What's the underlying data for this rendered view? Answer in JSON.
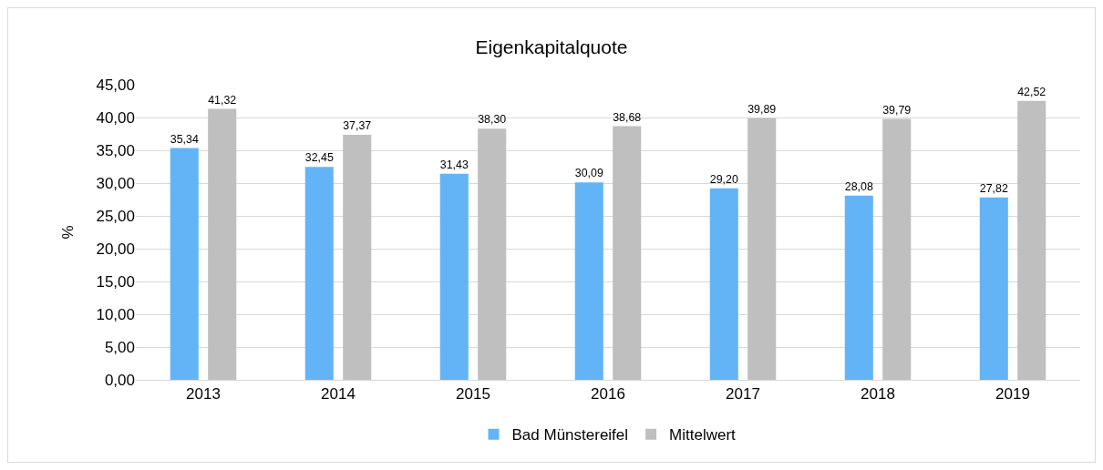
{
  "chart_data": {
    "type": "bar",
    "title": "Eigenkapitalquote",
    "ylabel": "%",
    "categories": [
      "2013",
      "2014",
      "2015",
      "2016",
      "2017",
      "2018",
      "2019"
    ],
    "series": [
      {
        "name": "Bad Münstereifel",
        "color": "#63b4f6",
        "values": [
          35.34,
          32.45,
          31.43,
          30.09,
          29.2,
          28.08,
          27.82
        ],
        "value_labels": [
          "35,34",
          "32,45",
          "31,43",
          "30,09",
          "29,20",
          "28,08",
          "27,82"
        ]
      },
      {
        "name": "Mittelwert",
        "color": "#bfbfbf",
        "values": [
          41.32,
          37.37,
          38.3,
          38.68,
          39.89,
          39.79,
          42.52
        ],
        "value_labels": [
          "41,32",
          "37,37",
          "38,30",
          "38,68",
          "39,89",
          "39,79",
          "42,52"
        ]
      }
    ],
    "ylim": [
      0,
      45
    ],
    "yticks": [
      {
        "value": 0,
        "label": "0,00"
      },
      {
        "value": 5,
        "label": "5,00"
      },
      {
        "value": 10,
        "label": "10,00"
      },
      {
        "value": 15,
        "label": "15,00"
      },
      {
        "value": 20,
        "label": "20,00"
      },
      {
        "value": 25,
        "label": "25,00"
      },
      {
        "value": 30,
        "label": "30,00"
      },
      {
        "value": 35,
        "label": "35,00"
      },
      {
        "value": 40,
        "label": "40,00"
      },
      {
        "value": 45,
        "label": "45,00"
      }
    ],
    "grid": "y",
    "legend": "bottom"
  }
}
